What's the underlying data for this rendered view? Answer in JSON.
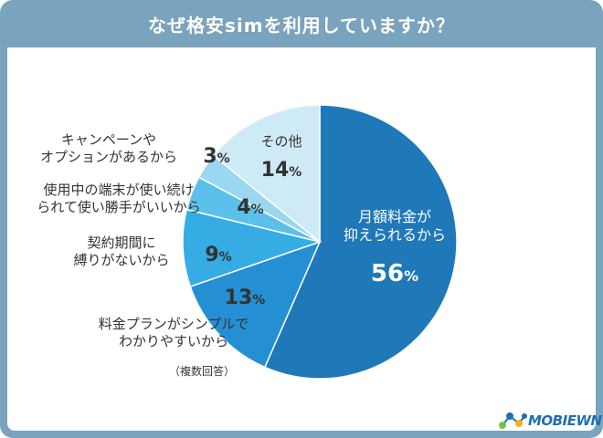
{
  "chart_data": {
    "type": "pie",
    "title": "なぜ格安simを利用していますか？",
    "note": "（複数回答）",
    "slices": [
      {
        "label_lines": [
          "月額料金が",
          "抑えられるから"
        ],
        "value": 56,
        "value_text": "56",
        "unit": "%",
        "color": "#1f78b8"
      },
      {
        "label_lines": [
          "料金プランがシンプルで",
          "わかりやすいから"
        ],
        "value": 13,
        "value_text": "13",
        "unit": "%",
        "color": "#2490d3"
      },
      {
        "label_lines": [
          "契約期間に",
          "縛りがないから"
        ],
        "value": 9,
        "value_text": "9",
        "unit": "%",
        "color": "#35ace4"
      },
      {
        "label_lines": [
          "使用中の端末が使い続け",
          "られて使い勝手がいいから"
        ],
        "value": 4,
        "value_text": "4",
        "unit": "%",
        "color": "#5cc1ea"
      },
      {
        "label_lines": [
          "キャンペーンや",
          "オプションがあるから"
        ],
        "value": 3,
        "value_text": "3",
        "unit": "%",
        "color": "#9ad7f1"
      },
      {
        "label_lines": [
          "その他"
        ],
        "value": 14,
        "value_text": "14",
        "unit": "%",
        "color": "#cfeaf7"
      }
    ]
  },
  "logo": {
    "text": "MOBIEWN"
  }
}
